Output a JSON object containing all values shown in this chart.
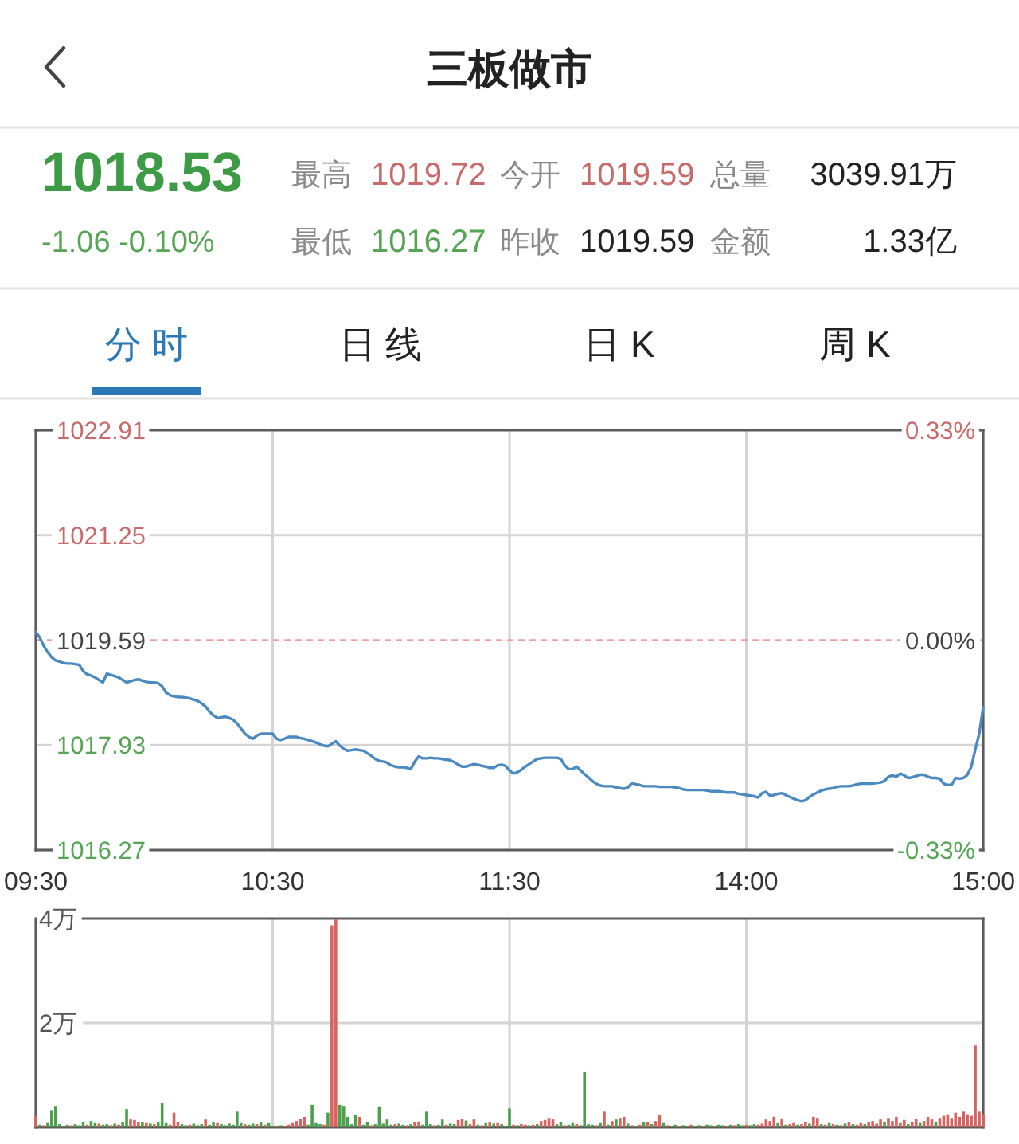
{
  "chart_data": [
    {
      "type": "other",
      "title": "三板做市",
      "annotations": [
        "1018.53",
        "-1.06 -0.10%",
        "最高",
        "1019.72",
        "今开",
        "1019.59",
        "总量",
        "3039.91万",
        "最低",
        "1016.27",
        "昨收",
        "1019.59",
        "金额",
        "1.33亿",
        "分 时",
        "日 线",
        "日 K",
        "周 K"
      ]
    },
    {
      "type": "line",
      "color": "#4a8ac0",
      "categories": [
        "09:30",
        null,
        null,
        null,
        null,
        null,
        null,
        null,
        null,
        null,
        null,
        null,
        null,
        null,
        null,
        null,
        null,
        null,
        null,
        null,
        null,
        null,
        null,
        null,
        null,
        null,
        null,
        null,
        null,
        null,
        null,
        null,
        null,
        null,
        null,
        null,
        null,
        null,
        null,
        null,
        null,
        null,
        null,
        null,
        null,
        null,
        null,
        null,
        null,
        null,
        null,
        null,
        null,
        null,
        null,
        null,
        null,
        null,
        null,
        null,
        "10:30",
        null,
        null,
        null,
        null,
        null,
        null,
        null,
        null,
        null,
        null,
        null,
        null,
        null,
        null,
        null,
        null,
        null,
        null,
        null,
        null,
        null,
        null,
        null,
        null,
        null,
        null,
        null,
        null,
        null,
        null,
        null,
        null,
        null,
        null,
        null,
        null,
        null,
        null,
        null,
        null,
        null,
        null,
        null,
        null,
        null,
        null,
        null,
        null,
        null,
        null,
        null,
        null,
        null,
        null,
        null,
        null,
        null,
        null,
        null,
        "11:30",
        null,
        null,
        null,
        null,
        null,
        null,
        null,
        null,
        null,
        null,
        null,
        null,
        null,
        null,
        null,
        null,
        null,
        null,
        null,
        null,
        null,
        null,
        null,
        null,
        null,
        null,
        null,
        null,
        null,
        null,
        null,
        null,
        null,
        null,
        null,
        null,
        null,
        null,
        null,
        null,
        null,
        null,
        null,
        null,
        null,
        null,
        null,
        null,
        null,
        null,
        null,
        null,
        null,
        null,
        null,
        null,
        null,
        null,
        null,
        "14:00",
        null,
        null,
        null,
        null,
        null,
        null,
        null,
        null,
        null,
        null,
        null,
        null,
        null,
        null,
        null,
        null,
        null,
        null,
        null,
        null,
        null,
        null,
        null,
        null,
        null,
        null,
        null,
        null,
        null,
        null,
        null,
        null,
        null,
        null,
        null,
        null,
        null,
        null,
        null,
        null,
        null,
        null,
        null,
        null,
        null,
        null,
        null,
        null,
        null,
        null,
        null,
        null,
        null,
        null,
        null,
        null,
        null,
        null,
        null,
        "15:00"
      ],
      "values": [
        1019.72,
        1019.63,
        1019.5,
        1019.4,
        1019.32,
        1019.27,
        1019.25,
        1019.23,
        1019.22,
        1019.22,
        1019.21,
        1019.2,
        1019.1,
        1019.05,
        1019.03,
        1019.0,
        1018.96,
        1018.92,
        1019.06,
        1019.04,
        1019.02,
        1019.0,
        1018.96,
        1018.92,
        1018.94,
        1018.96,
        1018.97,
        1018.95,
        1018.93,
        1018.92,
        1018.92,
        1018.91,
        1018.86,
        1018.76,
        1018.72,
        1018.7,
        1018.69,
        1018.69,
        1018.68,
        1018.67,
        1018.65,
        1018.63,
        1018.59,
        1018.54,
        1018.46,
        1018.4,
        1018.36,
        1018.37,
        1018.38,
        1018.36,
        1018.33,
        1018.27,
        1018.19,
        1018.11,
        1018.06,
        1018.03,
        1018.08,
        1018.11,
        1018.11,
        1018.11,
        1018.11,
        1018.03,
        1018.01,
        1018.03,
        1018.06,
        1018.06,
        1018.06,
        1018.04,
        1018.03,
        1018.01,
        1017.99,
        1017.97,
        1017.94,
        1017.92,
        1017.91,
        1017.95,
        1017.99,
        1017.92,
        1017.87,
        1017.84,
        1017.85,
        1017.86,
        1017.85,
        1017.84,
        1017.8,
        1017.76,
        1017.71,
        1017.68,
        1017.67,
        1017.65,
        1017.61,
        1017.59,
        1017.58,
        1017.58,
        1017.57,
        1017.55,
        1017.67,
        1017.75,
        1017.72,
        1017.72,
        1017.73,
        1017.72,
        1017.72,
        1017.71,
        1017.7,
        1017.69,
        1017.66,
        1017.62,
        1017.59,
        1017.59,
        1017.61,
        1017.63,
        1017.62,
        1017.6,
        1017.59,
        1017.57,
        1017.57,
        1017.61,
        1017.62,
        1017.6,
        1017.53,
        1017.48,
        1017.5,
        1017.54,
        1017.59,
        1017.63,
        1017.67,
        1017.71,
        1017.72,
        1017.73,
        1017.73,
        1017.73,
        1017.73,
        1017.71,
        1017.61,
        1017.55,
        1017.55,
        1017.59,
        1017.53,
        1017.47,
        1017.42,
        1017.36,
        1017.32,
        1017.29,
        1017.28,
        1017.28,
        1017.28,
        1017.26,
        1017.25,
        1017.24,
        1017.26,
        1017.33,
        1017.31,
        1017.3,
        1017.28,
        1017.28,
        1017.28,
        1017.28,
        1017.27,
        1017.27,
        1017.27,
        1017.27,
        1017.26,
        1017.25,
        1017.23,
        1017.22,
        1017.22,
        1017.22,
        1017.22,
        1017.22,
        1017.21,
        1017.2,
        1017.2,
        1017.2,
        1017.19,
        1017.18,
        1017.18,
        1017.18,
        1017.16,
        1017.15,
        1017.14,
        1017.13,
        1017.12,
        1017.1,
        1017.17,
        1017.19,
        1017.13,
        1017.14,
        1017.16,
        1017.17,
        1017.14,
        1017.11,
        1017.08,
        1017.06,
        1017.04,
        1017.06,
        1017.11,
        1017.15,
        1017.18,
        1017.21,
        1017.23,
        1017.24,
        1017.25,
        1017.27,
        1017.28,
        1017.28,
        1017.28,
        1017.29,
        1017.31,
        1017.32,
        1017.32,
        1017.32,
        1017.32,
        1017.33,
        1017.34,
        1017.36,
        1017.43,
        1017.45,
        1017.43,
        1017.48,
        1017.45,
        1017.41,
        1017.42,
        1017.44,
        1017.46,
        1017.46,
        1017.43,
        1017.41,
        1017.41,
        1017.4,
        1017.32,
        1017.3,
        1017.3,
        1017.41,
        1017.4,
        1017.41,
        1017.46,
        1017.59,
        1017.86,
        1018.11,
        1018.53
      ],
      "ylim": [
        1016.27,
        1022.91
      ],
      "yticks": [
        1016.27,
        1017.93,
        1019.59,
        1021.25,
        1022.91
      ],
      "y2lim": [
        -0.33,
        0.33
      ],
      "y2ticks": [
        {
          "value": -0.33,
          "label": "-0.33%"
        },
        {
          "value": 0,
          "label": "0.00%"
        },
        {
          "value": 0.33,
          "label": "0.33%"
        }
      ],
      "grid": true,
      "ref_lines": [
        {
          "axis": "y",
          "value": 1019.59,
          "color": "#eea0a0",
          "line_style": "dashed"
        }
      ]
    },
    {
      "type": "bar",
      "categories": [
        null,
        null,
        null,
        null,
        null,
        null,
        null,
        null,
        null,
        null,
        null,
        null,
        null,
        null,
        null,
        null,
        null,
        null,
        null,
        null,
        null,
        null,
        null,
        null,
        null,
        null,
        null,
        null,
        null,
        null,
        null,
        null,
        null,
        null,
        null,
        null,
        null,
        null,
        null,
        null,
        null,
        null,
        null,
        null,
        null,
        null,
        null,
        null,
        null,
        null,
        null,
        null,
        null,
        null,
        null,
        null,
        null,
        null,
        null,
        null,
        null,
        null,
        null,
        null,
        null,
        null,
        null,
        null,
        null,
        null,
        null,
        null,
        null,
        null,
        null,
        null,
        null,
        null,
        null,
        null,
        null,
        null,
        null,
        null,
        null,
        null,
        null,
        null,
        null,
        null,
        null,
        null,
        null,
        null,
        null,
        null,
        null,
        null,
        null,
        null,
        null,
        null,
        null,
        null,
        null,
        null,
        null,
        null,
        null,
        null,
        null,
        null,
        null,
        null,
        null,
        null,
        null,
        null,
        null,
        null,
        null,
        null,
        null,
        null,
        null,
        null,
        null,
        null,
        null,
        null,
        null,
        null,
        null,
        null,
        null,
        null,
        null,
        null,
        null,
        null,
        null,
        null,
        null,
        null,
        null,
        null,
        null,
        null,
        null,
        null,
        null,
        null,
        null,
        null,
        null,
        null,
        null,
        null,
        null,
        null,
        null,
        null,
        null,
        null,
        null,
        null,
        null,
        null,
        null,
        null,
        null,
        null,
        null,
        null,
        null,
        null,
        null,
        null,
        null,
        null,
        null,
        null,
        null,
        null,
        null,
        null,
        null,
        null,
        null,
        null,
        null,
        null,
        null,
        null,
        null,
        null,
        null,
        null,
        null,
        null,
        null,
        null,
        null,
        null,
        null,
        null,
        null,
        null,
        null,
        null,
        null,
        null,
        null,
        null,
        null,
        null,
        null,
        null,
        null,
        null,
        null,
        null,
        null,
        null,
        null,
        null,
        null,
        null,
        null,
        null,
        null,
        null,
        null,
        null,
        null,
        null,
        null,
        null,
        null,
        null,
        null
      ],
      "values": [
        0.22,
        0.05,
        0.04,
        0.08,
        0.33,
        0.41,
        0.06,
        0.03,
        0.05,
        0.04,
        0.06,
        0.04,
        0.1,
        0.05,
        0.12,
        0.08,
        0.07,
        0.05,
        0.06,
        0.04,
        0.07,
        0.05,
        0.09,
        0.35,
        0.15,
        0.14,
        0.1,
        0.09,
        0.08,
        0.07,
        0.06,
        0.09,
        0.46,
        0.08,
        0.05,
        0.28,
        0.1,
        0.06,
        0.04,
        0.05,
        0.07,
        0.04,
        0.06,
        0.15,
        0.05,
        0.09,
        0.08,
        0.06,
        0.04,
        0.07,
        0.05,
        0.3,
        0.08,
        0.06,
        0.05,
        0.07,
        0.06,
        0.09,
        0.05,
        0.08,
        0.03,
        0.02,
        0.04,
        0.03,
        0.05,
        0.08,
        0.12,
        0.16,
        0.2,
        0.05,
        0.43,
        0.08,
        0.06,
        0.05,
        0.28,
        3.87,
        3.99,
        0.43,
        0.41,
        0.2,
        0.06,
        0.24,
        0.2,
        0.05,
        0.1,
        0.04,
        0.06,
        0.4,
        0.07,
        0.15,
        0.05,
        0.06,
        0.07,
        0.05,
        0.04,
        0.06,
        0.1,
        0.11,
        0.05,
        0.3,
        0.06,
        0.04,
        0.05,
        0.15,
        0.05,
        0.07,
        0.06,
        0.14,
        0.16,
        0.13,
        0.06,
        0.15,
        0.05,
        0.04,
        0.08,
        0.09,
        0.07,
        0.08,
        0.06,
        0.03,
        0.36,
        0.05,
        0.04,
        0.06,
        0.05,
        0.04,
        0.05,
        0.06,
        0.12,
        0.14,
        0.18,
        0.15,
        0.06,
        0.1,
        0.04,
        0.05,
        0.08,
        0.06,
        0.04,
        1.07,
        0.06,
        0.05,
        0.04,
        0.08,
        0.3,
        0.05,
        0.12,
        0.15,
        0.18,
        0.2,
        0.07,
        0.04,
        0.03,
        0.05,
        0.09,
        0.1,
        0.06,
        0.12,
        0.24,
        0.08,
        0.04,
        0.03,
        0.05,
        0.03,
        0.04,
        0.03,
        0.05,
        0.03,
        0.04,
        0.03,
        0.05,
        0.04,
        0.03,
        0.05,
        0.04,
        0.03,
        0.05,
        0.04,
        0.06,
        0.04,
        0.05,
        0.04,
        0.06,
        0.05,
        0.07,
        0.15,
        0.12,
        0.2,
        0.08,
        0.17,
        0.05,
        0.06,
        0.08,
        0.05,
        0.06,
        0.1,
        0.07,
        0.2,
        0.18,
        0.06,
        0.05,
        0.08,
        0.06,
        0.05,
        0.04,
        0.07,
        0.1,
        0.06,
        0.05,
        0.08,
        0.06,
        0.09,
        0.12,
        0.07,
        0.15,
        0.1,
        0.18,
        0.12,
        0.2,
        0.08,
        0.14,
        0.06,
        0.1,
        0.16,
        0.08,
        0.12,
        0.2,
        0.15,
        0.1,
        0.18,
        0.22,
        0.25,
        0.18,
        0.28,
        0.2,
        0.3,
        0.25,
        0.22,
        1.57,
        0.3,
        0.25
      ],
      "colors": [
        "#d9625e",
        "#4c9f4c",
        "#d9625e",
        "#4c9f4c",
        "#4c9f4c",
        "#4c9f4c",
        "#4c9f4c",
        "#d9625e",
        "#4c9f4c",
        "#d9625e",
        "#4c9f4c",
        "#4c9f4c",
        "#4c9f4c",
        "#d9625e",
        "#4c9f4c",
        "#4c9f4c",
        "#d9625e",
        "#4c9f4c",
        "#4c9f4c",
        "#d9625e",
        "#4c9f4c",
        "#d9625e",
        "#4c9f4c",
        "#4c9f4c",
        "#d9625e",
        "#d9625e",
        "#d9625e",
        "#4c9f4c",
        "#d9625e",
        "#4c9f4c",
        "#d9625e",
        "#4c9f4c",
        "#4c9f4c",
        "#4c9f4c",
        "#d9625e",
        "#d9625e",
        "#d9625e",
        "#4c9f4c",
        "#4c9f4c",
        "#d9625e",
        "#4c9f4c",
        "#4c9f4c",
        "#4c9f4c",
        "#d9625e",
        "#4c9f4c",
        "#4c9f4c",
        "#d9625e",
        "#4c9f4c",
        "#4c9f4c",
        "#4c9f4c",
        "#4c9f4c",
        "#4c9f4c",
        "#4c9f4c",
        "#d9625e",
        "#4c9f4c",
        "#4c9f4c",
        "#d9625e",
        "#4c9f4c",
        "#d9625e",
        "#4c9f4c",
        "#4c9f4c",
        "#d9625e",
        "#4c9f4c",
        "#d9625e",
        "#d9625e",
        "#d9625e",
        "#d9625e",
        "#d9625e",
        "#d9625e",
        "#4c9f4c",
        "#4c9f4c",
        "#4c9f4c",
        "#4c9f4c",
        "#d9625e",
        "#4c9f4c",
        "#d9625e",
        "#d9625e",
        "#4c9f4c",
        "#4c9f4c",
        "#4c9f4c",
        "#4c9f4c",
        "#4c9f4c",
        "#d9625e",
        "#4c9f4c",
        "#4c9f4c",
        "#d9625e",
        "#4c9f4c",
        "#4c9f4c",
        "#4c9f4c",
        "#4c9f4c",
        "#4c9f4c",
        "#d9625e",
        "#4c9f4c",
        "#4c9f4c",
        "#d9625e",
        "#4c9f4c",
        "#d9625e",
        "#d9625e",
        "#4c9f4c",
        "#4c9f4c",
        "#4c9f4c",
        "#d9625e",
        "#4c9f4c",
        "#4c9f4c",
        "#d9625e",
        "#4c9f4c",
        "#4c9f4c",
        "#d9625e",
        "#d9625e",
        "#4c9f4c",
        "#d9625e",
        "#d9625e",
        "#4c9f4c",
        "#d9625e",
        "#4c9f4c",
        "#d9625e",
        "#4c9f4c",
        "#d9625e",
        "#4c9f4c",
        "#4c9f4c",
        "#4c9f4c",
        "#d9625e",
        "#4c9f4c",
        "#d9625e",
        "#d9625e",
        "#4c9f4c",
        "#d9625e",
        "#4c9f4c",
        "#d9625e",
        "#d9625e",
        "#d9625e",
        "#d9625e",
        "#4c9f4c",
        "#4c9f4c",
        "#d9625e",
        "#4c9f4c",
        "#4c9f4c",
        "#d9625e",
        "#4c9f4c",
        "#4c9f4c",
        "#4c9f4c",
        "#4c9f4c",
        "#d9625e",
        "#4c9f4c",
        "#d9625e",
        "#4c9f4c",
        "#d9625e",
        "#4c9f4c",
        "#d9625e",
        "#d9625e",
        "#4c9f4c",
        "#d9625e",
        "#4c9f4c",
        "#d9625e",
        "#4c9f4c",
        "#d9625e",
        "#4c9f4c",
        "#d9625e",
        "#d9625e",
        "#4c9f4c",
        "#d9625e",
        "#4c9f4c",
        "#4c9f4c",
        "#d9625e",
        "#4c9f4c",
        "#4c9f4c",
        "#d9625e",
        "#4c9f4c",
        "#4c9f4c",
        "#d9625e",
        "#4c9f4c",
        "#4c9f4c",
        "#d9625e",
        "#4c9f4c",
        "#4c9f4c",
        "#d9625e",
        "#4c9f4c",
        "#d9625e",
        "#4c9f4c",
        "#4c9f4c",
        "#d9625e",
        "#4c9f4c",
        "#4c9f4c",
        "#d9625e",
        "#d9625e",
        "#d9625e",
        "#d9625e",
        "#d9625e",
        "#4c9f4c",
        "#d9625e",
        "#4c9f4c",
        "#d9625e",
        "#d9625e",
        "#4c9f4c",
        "#d9625e",
        "#d9625e",
        "#4c9f4c",
        "#d9625e",
        "#d9625e",
        "#4c9f4c",
        "#d9625e",
        "#4c9f4c",
        "#d9625e",
        "#4c9f4c",
        "#d9625e",
        "#4c9f4c",
        "#d9625e",
        "#4c9f4c",
        "#d9625e",
        "#d9625e",
        "#4c9f4c",
        "#d9625e",
        "#d9625e",
        "#d9625e",
        "#d9625e",
        "#4c9f4c",
        "#d9625e",
        "#d9625e",
        "#d9625e",
        "#d9625e",
        "#d9625e",
        "#4c9f4c",
        "#d9625e",
        "#d9625e",
        "#4c9f4c",
        "#d9625e",
        "#d9625e",
        "#d9625e",
        "#4c9f4c",
        "#d9625e",
        "#d9625e",
        "#d9625e",
        "#d9625e",
        "#d9625e",
        "#d9625e",
        "#d9625e",
        "#d9625e",
        "#d9625e",
        "#d9625e",
        "#d9625e",
        "#d9625e"
      ],
      "ylim": [
        0,
        4
      ],
      "yticks": [
        {
          "value": 2,
          "label": "2万"
        },
        {
          "value": 4,
          "label": "4万"
        }
      ],
      "grid": true,
      "tick_labels": "y"
    }
  ]
}
